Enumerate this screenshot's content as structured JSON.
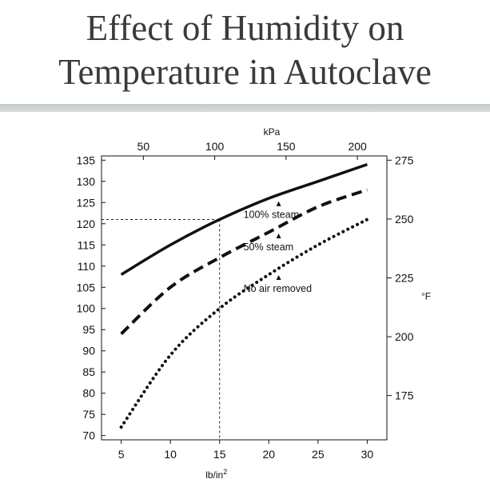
{
  "slide": {
    "title_line1": "Effect of Humidity on",
    "title_line2": "Temperature in Autoclave"
  },
  "chart_data": {
    "type": "line",
    "title": "",
    "x": [
      5,
      10,
      15,
      20,
      25,
      30
    ],
    "xlabel": "lb/in",
    "xlabel_superscript": "2",
    "xlim": [
      3,
      32
    ],
    "xticks": [
      5,
      10,
      15,
      20,
      25,
      30
    ],
    "ylabel": "",
    "ylim": [
      69,
      136
    ],
    "yticks": [
      70,
      75,
      80,
      85,
      90,
      95,
      100,
      105,
      110,
      115,
      120,
      125,
      130,
      135
    ],
    "top_axis": {
      "label": "kPa",
      "ticks": [
        50,
        100,
        150,
        200
      ]
    },
    "right_axis": {
      "label": "°F",
      "ticks": [
        175,
        200,
        225,
        250,
        275
      ]
    },
    "grid": false,
    "series": [
      {
        "name": "100% steam",
        "style": "solid",
        "points": [
          [
            5,
            108
          ],
          [
            10,
            115
          ],
          [
            15,
            121
          ],
          [
            20,
            126
          ],
          [
            25,
            130
          ],
          [
            30,
            134
          ]
        ]
      },
      {
        "name": "50% steam",
        "style": "dashed",
        "points": [
          [
            5,
            94
          ],
          [
            10,
            105
          ],
          [
            15,
            112
          ],
          [
            20,
            118
          ],
          [
            25,
            124
          ],
          [
            30,
            128
          ]
        ]
      },
      {
        "name": "No air removed",
        "style": "dotted",
        "points": [
          [
            5,
            72
          ],
          [
            10,
            89
          ],
          [
            15,
            100
          ],
          [
            20,
            108
          ],
          [
            25,
            115
          ],
          [
            30,
            121
          ]
        ]
      }
    ],
    "reference": {
      "x": 15,
      "y": 121
    },
    "annotations": [
      {
        "text": "100% steam",
        "series": "100% steam",
        "arrow_x": 21
      },
      {
        "text": "50% steam",
        "series": "50% steam",
        "arrow_x": 21
      },
      {
        "text": "No air removed",
        "series": "No air removed",
        "arrow_x": 21
      }
    ]
  }
}
